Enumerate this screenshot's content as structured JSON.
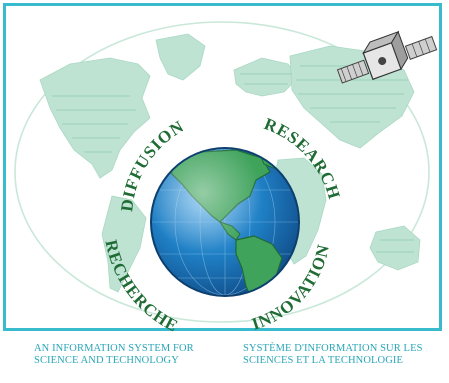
{
  "poster": {
    "words": {
      "diffusion": "DIFFUSION",
      "research": "RESEARCH",
      "recherche": "RECHERCHE",
      "innovation": "INNOVATION"
    },
    "caption_en": [
      "AN INFORMATION SYSTEM FOR",
      "SCIENCE AND TECHNOLOGY"
    ],
    "caption_fr": [
      "SYSTÈME D'INFORMATION SUR LES",
      "SCIENCES ET LA TECHNOLOGIE"
    ]
  },
  "colors": {
    "frame": "#38bccd",
    "world_map": "#bfe3d2",
    "ocean": "#1f7fc4",
    "land": "#3fa35c",
    "lettering": "#1e6b34",
    "caption": "#2aa6b8"
  },
  "icons": [
    "satellite-icon",
    "globe-icon",
    "world-map"
  ]
}
